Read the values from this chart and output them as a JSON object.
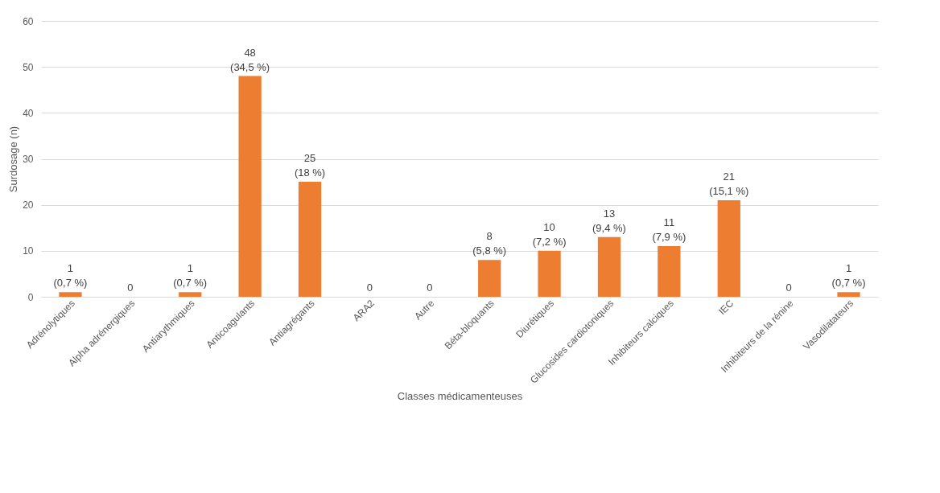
{
  "chart_data": {
    "type": "bar",
    "xlabel": "Classes médicamenteuses",
    "ylabel": "Surdosage (n)",
    "categories": [
      "Adrénolytiques",
      "Alpha adrénergiques",
      "Antiarythmiques",
      "Anticoagulants",
      "Antiagrégants",
      "ARA2",
      "Autre",
      "Béta-bloquants",
      "Diurétiques",
      "Glucosides cardiotoniques",
      "Inhibiteurs calciques",
      "IEC",
      "Inhibiteurs de la rénine",
      "Vasodilatateurs"
    ],
    "values": [
      1,
      0,
      1,
      48,
      25,
      0,
      0,
      8,
      10,
      13,
      11,
      21,
      0,
      1
    ],
    "value_labels": [
      "1\n(0,7 %)",
      "0",
      "1\n(0,7 %)",
      "48\n(34,5 %)",
      "25\n(18 %)",
      "0",
      "0",
      "8\n(5,8 %)",
      "10\n(7,2 %)",
      "13\n(9,4 %)",
      "11\n(7,9 %)",
      "21\n(15,1 %)",
      "0",
      "1\n(0,7 %)"
    ],
    "color": "#ed7d31",
    "ylim": [
      0,
      60
    ],
    "yticks": [
      0,
      10,
      20,
      30,
      40,
      50,
      60
    ],
    "grid": "y"
  }
}
